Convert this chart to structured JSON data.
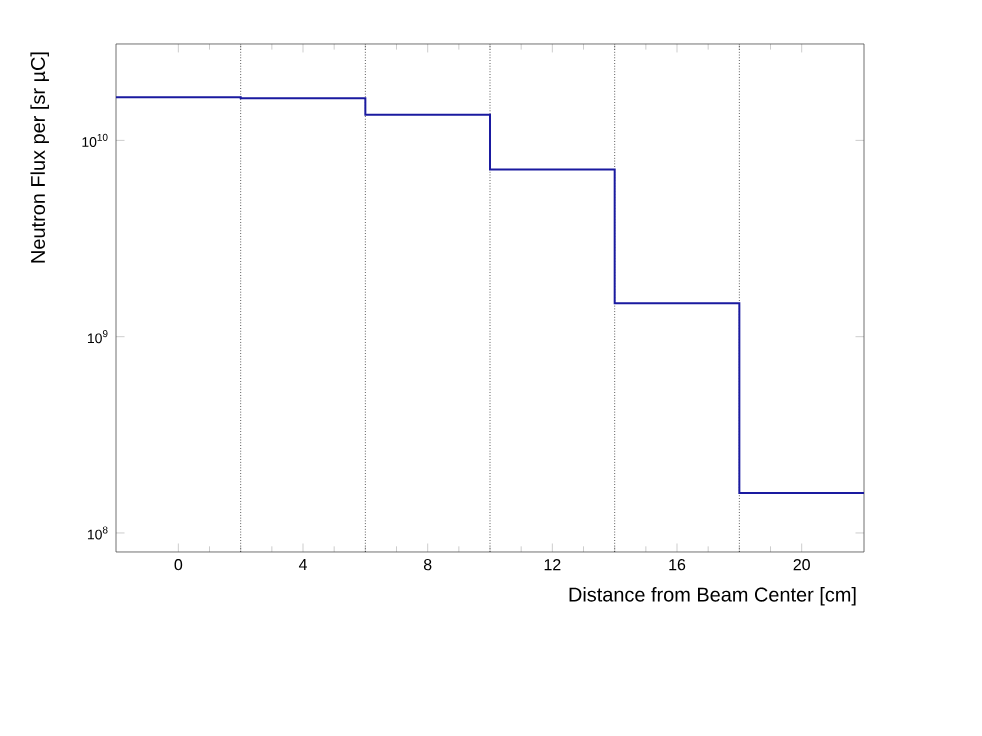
{
  "chart_data": {
    "type": "histogram",
    "xlabel": "Distance from Beam Center [cm]",
    "ylabel": "Neutron Flux per [sr µC]",
    "bins": [
      -2,
      2,
      6,
      10,
      14,
      18,
      22
    ],
    "values": [
      16600000000.0,
      16400000000.0,
      13500000000.0,
      7100000000.0,
      1480000000.0,
      160000000.0
    ],
    "color": "#1a1aa0",
    "xlim": [
      -2,
      22
    ],
    "xticks": [
      0,
      4,
      8,
      12,
      16,
      20
    ],
    "ylim": [
      80000000.0,
      31000000000.0
    ],
    "log": "y",
    "yticks": [
      {
        "value": 100000000.0,
        "label": "10$^{8}$"
      },
      {
        "value": 1000000000.0,
        "label": "10$^{9}$"
      },
      {
        "value": 10000000000.0,
        "label": "10$^{10}$"
      }
    ],
    "ref_lines": [
      {
        "axis": "x",
        "value": 2,
        "line_style": "dotted"
      },
      {
        "axis": "x",
        "value": 6,
        "line_style": "dotted"
      },
      {
        "axis": "x",
        "value": 10,
        "line_style": "dotted"
      },
      {
        "axis": "x",
        "value": 14,
        "line_style": "dotted"
      },
      {
        "axis": "x",
        "value": 18,
        "line_style": "dotted"
      }
    ]
  }
}
